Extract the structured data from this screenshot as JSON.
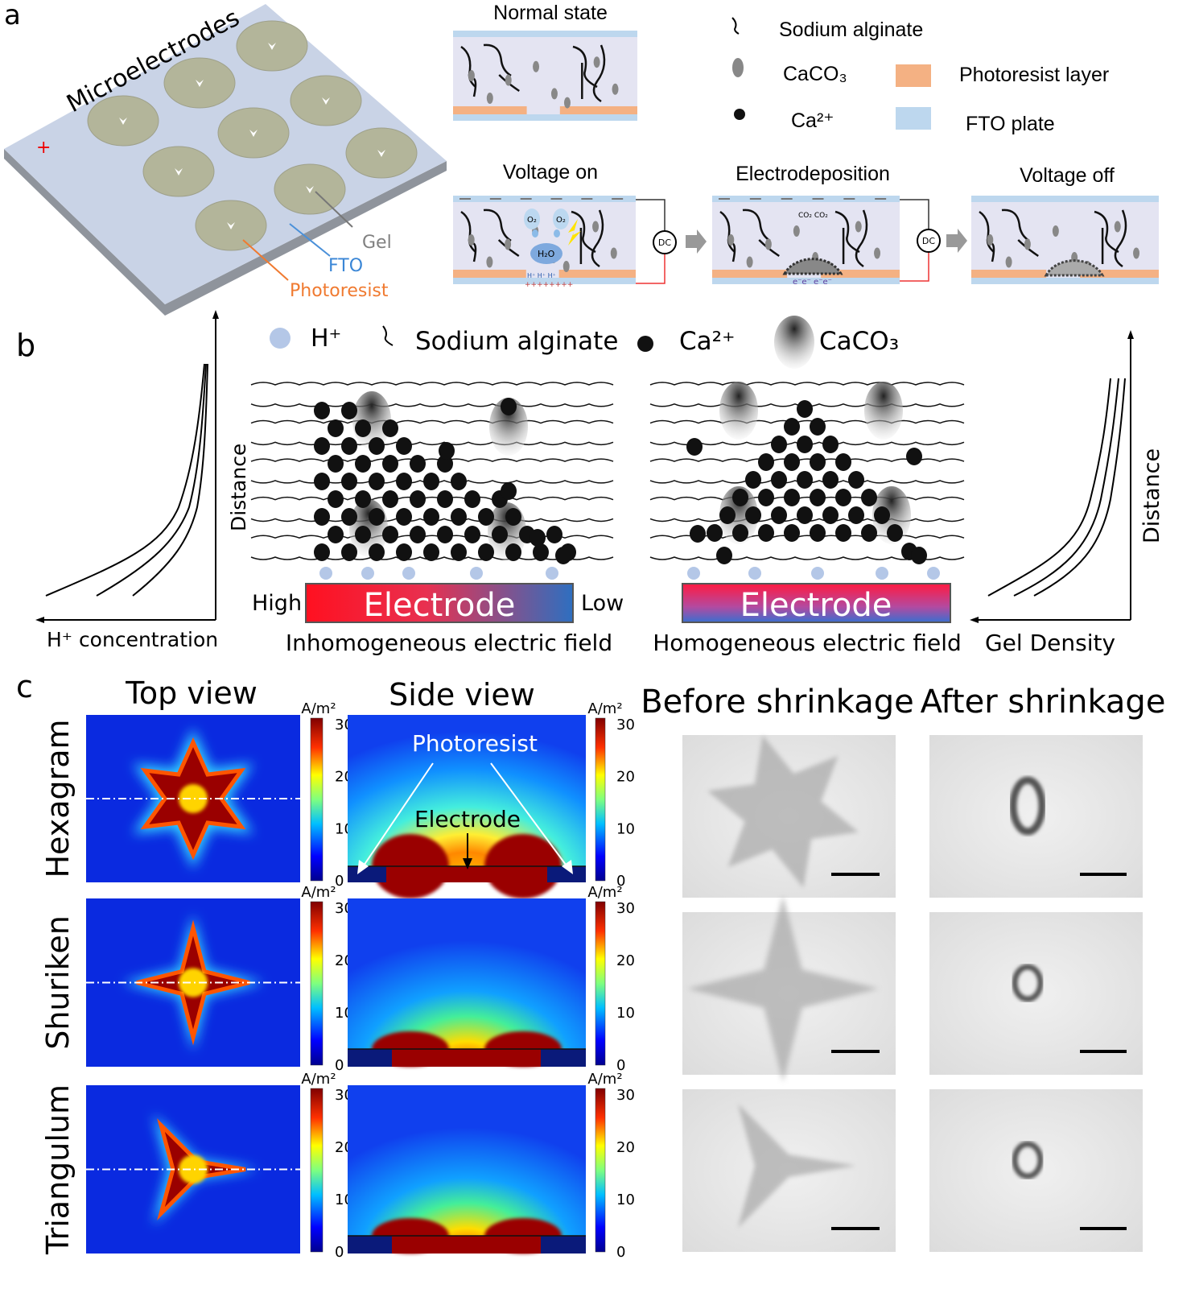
{
  "panel_labels": {
    "a": "a",
    "b": "b",
    "c": "c"
  },
  "panel_a": {
    "chip_label": "Microelectrodes",
    "plus_sign": "+",
    "gel_label": "Gel",
    "fto_label": "FTO",
    "photoresist_label": "Photoresist",
    "normal_state": "Normal state",
    "voltage_on": "Voltage on",
    "electrodeposition": "Electrodeposition",
    "voltage_off": "Voltage off",
    "dc_label": "DC",
    "o2_label": "O₂",
    "h2o_label": "H₂O",
    "hplus_row": "H⁺ H⁺ H⁺",
    "co2_label": "CO₂ CO₂",
    "electrons": "e⁻e⁻ e⁻e⁻",
    "plus_row": "++++++++",
    "legend": {
      "sodium_alginate": "Sodium alginate",
      "caco3": "CaCO₃",
      "ca2": "Ca²⁺",
      "photoresist_layer": "Photoresist layer",
      "fto_plate": "FTO plate"
    },
    "colors": {
      "photoresist": "#f4b183",
      "fto": "#bdd7ee",
      "gel": "#e4e4f2"
    }
  },
  "panel_b": {
    "legend": {
      "hplus": "H⁺",
      "sodium_alginate": "Sodium alginate",
      "ca2": "Ca²⁺",
      "caco3": "CaCO₃"
    },
    "left_graph": {
      "xlabel": "H⁺ concentration",
      "ylabel": "Distance"
    },
    "right_graph": {
      "xlabel": "Gel Density",
      "ylabel": "Distance"
    },
    "electrode_label": "Electrode",
    "high": "High",
    "low": "Low",
    "inhomogeneous": "Inhomogeneous electric field",
    "homogeneous": "Homogeneous electric field"
  },
  "panel_c": {
    "top_view": "Top view",
    "side_view": "Side view",
    "before": "Before shrinkage",
    "after": "After shrinkage",
    "unit": "A/m²",
    "photoresist": "Photoresist",
    "electrode": "Electrode",
    "colorbar_ticks": [
      "30",
      "20",
      "10",
      "0"
    ],
    "rows": [
      {
        "label": "Hexagram"
      },
      {
        "label": "Shuriken"
      },
      {
        "label": "Triangulum"
      }
    ]
  }
}
